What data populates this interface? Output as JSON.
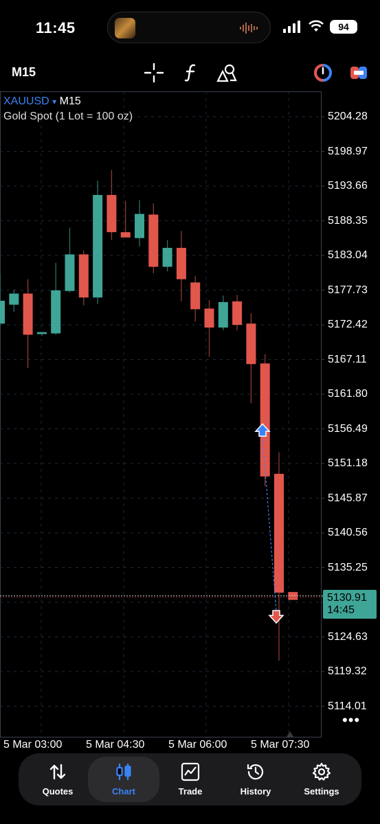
{
  "status": {
    "time": "11:45",
    "battery": "94"
  },
  "toolbar": {
    "timeframe": "M15"
  },
  "chart_header": {
    "symbol": "XAUUSD",
    "arrow": "▾",
    "period": "M15",
    "description": "Gold Spot (1 Lot = 100 oz)"
  },
  "price_axis": [
    "5204.28",
    "5198.97",
    "5193.66",
    "5188.35",
    "5183.04",
    "5177.73",
    "5172.42",
    "5167.11",
    "5161.80",
    "5156.49",
    "5151.18",
    "5145.87",
    "5140.56",
    "5135.25",
    "5124.63",
    "5119.32",
    "5114.01"
  ],
  "current_price": {
    "price": "5130.91",
    "countdown": "14:45"
  },
  "time_axis": [
    "5 Mar 03:00",
    "5 Mar 04:30",
    "5 Mar 06:00",
    "5 Mar 07:30"
  ],
  "colors": {
    "bull": "#3fa596",
    "bear": "#e2574c",
    "accent": "#3b82f6",
    "grid": "#1e2a38"
  },
  "chart_data": {
    "type": "candlestick",
    "title": "",
    "symbol": "XAUUSD",
    "timeframe": "M15",
    "ylim": [
      5111.5,
      5207.5
    ],
    "candles": [
      {
        "o": 5172.6,
        "h": 5180.2,
        "l": 5172.4,
        "c": 5176.1
      },
      {
        "o": 5175.5,
        "h": 5177.8,
        "l": 5174.4,
        "c": 5177.2
      },
      {
        "o": 5177.2,
        "h": 5179.4,
        "l": 5165.8,
        "c": 5170.9
      },
      {
        "o": 5171.0,
        "h": 5171.2,
        "l": 5170.7,
        "c": 5171.3
      },
      {
        "o": 5171.1,
        "h": 5181.9,
        "l": 5170.9,
        "c": 5177.7
      },
      {
        "o": 5177.6,
        "h": 5187.3,
        "l": 5177.4,
        "c": 5183.2
      },
      {
        "o": 5183.2,
        "h": 5183.8,
        "l": 5175.4,
        "c": 5176.6
      },
      {
        "o": 5176.6,
        "h": 5194.5,
        "l": 5175.6,
        "c": 5192.3
      },
      {
        "o": 5192.3,
        "h": 5196.1,
        "l": 5185.4,
        "c": 5186.6
      },
      {
        "o": 5186.6,
        "h": 5191.4,
        "l": 5185.9,
        "c": 5185.8
      },
      {
        "o": 5185.7,
        "h": 5191.5,
        "l": 5184.4,
        "c": 5189.4
      },
      {
        "o": 5189.3,
        "h": 5191.0,
        "l": 5180.3,
        "c": 5181.3
      },
      {
        "o": 5181.3,
        "h": 5185.4,
        "l": 5180.6,
        "c": 5184.2
      },
      {
        "o": 5184.2,
        "h": 5186.8,
        "l": 5176.0,
        "c": 5179.4
      },
      {
        "o": 5178.9,
        "h": 5179.9,
        "l": 5172.9,
        "c": 5174.8
      },
      {
        "o": 5174.9,
        "h": 5176.2,
        "l": 5167.5,
        "c": 5172.0
      },
      {
        "o": 5172.0,
        "h": 5176.9,
        "l": 5171.6,
        "c": 5175.9
      },
      {
        "o": 5176.0,
        "h": 5177.0,
        "l": 5171.6,
        "c": 5172.4
      },
      {
        "o": 5172.6,
        "h": 5174.2,
        "l": 5160.4,
        "c": 5166.4
      },
      {
        "o": 5166.5,
        "h": 5167.9,
        "l": 5147.7,
        "c": 5149.2
      },
      {
        "o": 5149.6,
        "h": 5152.9,
        "l": 5121.0,
        "c": 5131.4
      },
      {
        "o": 5131.5,
        "h": 5131.5,
        "l": 5130.5,
        "c": 5130.3
      }
    ],
    "current_price": 5130.91,
    "trades": [
      {
        "side": "buy",
        "price": 5156.3
      },
      {
        "side": "sell",
        "price": 5127.7
      }
    ]
  }
}
